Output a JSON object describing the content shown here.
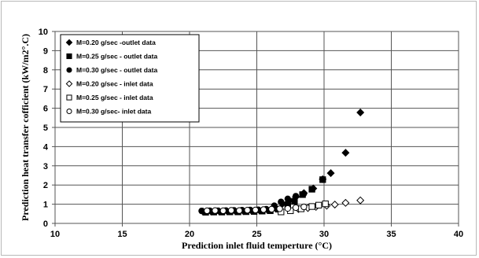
{
  "chart_data": {
    "type": "scatter",
    "title": "",
    "xlabel": "Prediction  inlet fluid temperture (°C)",
    "ylabel": "Prediction  heat transfer cofficient (kW/m2°.C)",
    "xlim": [
      10,
      40
    ],
    "ylim": [
      0,
      10
    ],
    "xticks": [
      10,
      15,
      20,
      25,
      30,
      35,
      40
    ],
    "yticks": [
      0,
      1,
      2,
      3,
      4,
      5,
      6,
      7,
      8,
      9,
      10
    ],
    "grid": true,
    "legend_position": "top-left",
    "series": [
      {
        "name": "M=0.20 g/sec -outlet data",
        "marker": "diamond-filled",
        "points": [
          [
            21.0,
            0.62
          ],
          [
            21.6,
            0.62
          ],
          [
            22.2,
            0.63
          ],
          [
            22.8,
            0.63
          ],
          [
            23.4,
            0.64
          ],
          [
            24.0,
            0.64
          ],
          [
            24.6,
            0.66
          ],
          [
            25.2,
            0.67
          ],
          [
            25.8,
            0.69
          ],
          [
            26.4,
            0.78
          ],
          [
            26.9,
            1.02
          ],
          [
            27.4,
            1.2
          ],
          [
            27.9,
            1.38
          ],
          [
            28.5,
            1.58
          ],
          [
            29.2,
            1.82
          ],
          [
            29.9,
            2.3
          ],
          [
            30.5,
            2.62
          ],
          [
            31.6,
            3.68
          ],
          [
            32.7,
            5.78
          ]
        ]
      },
      {
        "name": "M=0.25 g/sec - outlet data",
        "marker": "square-filled",
        "points": [
          [
            21.2,
            0.58
          ],
          [
            21.8,
            0.59
          ],
          [
            22.4,
            0.59
          ],
          [
            23.0,
            0.6
          ],
          [
            23.6,
            0.6
          ],
          [
            24.2,
            0.61
          ],
          [
            24.8,
            0.62
          ],
          [
            25.4,
            0.64
          ],
          [
            26.0,
            0.66
          ],
          [
            26.6,
            0.74
          ],
          [
            27.3,
            0.98
          ],
          [
            27.8,
            1.15
          ],
          [
            28.4,
            1.5
          ],
          [
            29.1,
            1.78
          ],
          [
            29.9,
            2.28
          ]
        ]
      },
      {
        "name": "M=0.30  g/sec - outlet data",
        "marker": "circle-filled",
        "points": [
          [
            20.9,
            0.65
          ],
          [
            21.5,
            0.66
          ],
          [
            22.1,
            0.66
          ],
          [
            22.7,
            0.67
          ],
          [
            23.3,
            0.68
          ],
          [
            23.9,
            0.69
          ],
          [
            24.5,
            0.7
          ],
          [
            25.1,
            0.71
          ],
          [
            25.7,
            0.74
          ],
          [
            26.3,
            0.92
          ],
          [
            26.8,
            1.12
          ],
          [
            27.3,
            1.28
          ],
          [
            27.9,
            1.42
          ],
          [
            28.5,
            1.55
          ]
        ]
      },
      {
        "name": "M=0.20 g/sec - inlet data",
        "marker": "diamond-open",
        "points": [
          [
            26.7,
            0.72
          ],
          [
            27.4,
            0.72
          ],
          [
            28.1,
            0.75
          ],
          [
            28.8,
            0.8
          ],
          [
            29.4,
            0.86
          ],
          [
            30.2,
            0.92
          ],
          [
            30.8,
            0.98
          ],
          [
            31.6,
            1.07
          ],
          [
            32.7,
            1.2
          ]
        ]
      },
      {
        "name": "M=0.25 g/sec - inlet data",
        "marker": "square-open",
        "points": [
          [
            26.8,
            0.6
          ],
          [
            27.5,
            0.66
          ],
          [
            28.3,
            0.76
          ],
          [
            29.1,
            0.88
          ],
          [
            29.6,
            0.95
          ],
          [
            30.1,
            1.02
          ]
        ]
      },
      {
        "name": "M=0.30 g/sec- inlet data",
        "marker": "circle-open",
        "points": [
          [
            21.3,
            0.66
          ],
          [
            21.9,
            0.67
          ],
          [
            22.5,
            0.66
          ],
          [
            23.1,
            0.68
          ],
          [
            23.7,
            0.67
          ],
          [
            24.3,
            0.69
          ],
          [
            24.9,
            0.7
          ],
          [
            25.5,
            0.72
          ],
          [
            26.1,
            0.74
          ],
          [
            26.7,
            0.76
          ],
          [
            27.3,
            0.78
          ],
          [
            27.9,
            0.82
          ],
          [
            28.5,
            0.86
          ]
        ]
      }
    ]
  }
}
